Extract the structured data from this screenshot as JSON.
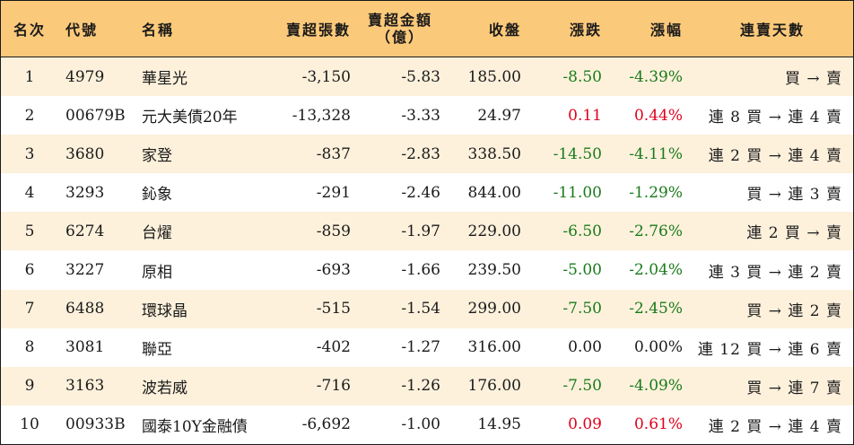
{
  "headers": {
    "rank": "名次",
    "code": "代號",
    "name": "名稱",
    "shares": "賣超張數",
    "amount_line1": "賣超金額",
    "amount_line2": "（億）",
    "close": "收盤",
    "change": "漲跌",
    "pct": "漲幅",
    "days": "連賣天數"
  },
  "colors": {
    "header_bg": "#fbc97a",
    "stripe_bg": "#fdf1dc",
    "down": "#1a7a1a",
    "up": "#e0001b"
  },
  "rows": [
    {
      "rank": "1",
      "code": "4979",
      "name": "華星光",
      "shares": "-3,150",
      "amount": "-5.83",
      "close": "185.00",
      "change": "-8.50",
      "pct": "-4.39%",
      "days": "買 → 賣",
      "dir": "neg"
    },
    {
      "rank": "2",
      "code": "00679B",
      "name": "元大美債20年",
      "shares": "-13,328",
      "amount": "-3.33",
      "close": "24.97",
      "change": "0.11",
      "pct": "0.44%",
      "days": "連 8 買 → 連 4 賣",
      "dir": "pos"
    },
    {
      "rank": "3",
      "code": "3680",
      "name": "家登",
      "shares": "-837",
      "amount": "-2.83",
      "close": "338.50",
      "change": "-14.50",
      "pct": "-4.11%",
      "days": "連 2 買 → 連 4 賣",
      "dir": "neg"
    },
    {
      "rank": "4",
      "code": "3293",
      "name": "鈊象",
      "shares": "-291",
      "amount": "-2.46",
      "close": "844.00",
      "change": "-11.00",
      "pct": "-1.29%",
      "days": "買 → 連 3 賣",
      "dir": "neg"
    },
    {
      "rank": "5",
      "code": "6274",
      "name": "台燿",
      "shares": "-859",
      "amount": "-1.97",
      "close": "229.00",
      "change": "-6.50",
      "pct": "-2.76%",
      "days": "連 2 買 → 賣",
      "dir": "neg"
    },
    {
      "rank": "6",
      "code": "3227",
      "name": "原相",
      "shares": "-693",
      "amount": "-1.66",
      "close": "239.50",
      "change": "-5.00",
      "pct": "-2.04%",
      "days": "連 3 買 → 連 2 賣",
      "dir": "neg"
    },
    {
      "rank": "7",
      "code": "6488",
      "name": "環球晶",
      "shares": "-515",
      "amount": "-1.54",
      "close": "299.00",
      "change": "-7.50",
      "pct": "-2.45%",
      "days": "買 → 連 2 賣",
      "dir": "neg"
    },
    {
      "rank": "8",
      "code": "3081",
      "name": "聯亞",
      "shares": "-402",
      "amount": "-1.27",
      "close": "316.00",
      "change": "0.00",
      "pct": "0.00%",
      "days": "連 12 買 → 連 6 賣",
      "dir": "flat"
    },
    {
      "rank": "9",
      "code": "3163",
      "name": "波若威",
      "shares": "-716",
      "amount": "-1.26",
      "close": "176.00",
      "change": "-7.50",
      "pct": "-4.09%",
      "days": "買 → 連 7 賣",
      "dir": "neg"
    },
    {
      "rank": "10",
      "code": "00933B",
      "name": "國泰10Y金融債",
      "shares": "-6,692",
      "amount": "-1.00",
      "close": "14.95",
      "change": "0.09",
      "pct": "0.61%",
      "days": "連 2 買 → 連 4 賣",
      "dir": "pos"
    }
  ]
}
